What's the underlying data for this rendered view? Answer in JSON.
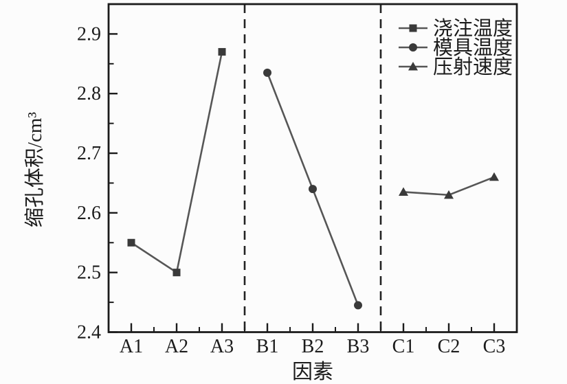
{
  "chart_data": {
    "type": "line",
    "title": "",
    "xlabel": "因素",
    "ylabel": "缩孔体积/cm³",
    "categories": [
      "A1",
      "A2",
      "A3",
      "B1",
      "B2",
      "B3",
      "C1",
      "C2",
      "C3"
    ],
    "series": [
      {
        "name": "浇注温度",
        "marker": "square",
        "start_index": 0,
        "x": [
          "A1",
          "A2",
          "A3"
        ],
        "values": [
          2.55,
          2.5,
          2.87
        ]
      },
      {
        "name": "模具温度",
        "marker": "circle",
        "start_index": 3,
        "x": [
          "B1",
          "B2",
          "B3"
        ],
        "values": [
          2.835,
          2.64,
          2.445
        ]
      },
      {
        "name": "压射速度",
        "marker": "triangle",
        "start_index": 6,
        "x": [
          "C1",
          "C2",
          "C3"
        ],
        "values": [
          2.635,
          2.63,
          2.66
        ]
      }
    ],
    "ylim": [
      2.4,
      2.95
    ],
    "yticks": [
      2.4,
      2.5,
      2.6,
      2.7,
      2.8,
      2.9
    ],
    "y_minor_step": 0.05,
    "group_separator_indices": [
      3,
      6
    ],
    "separator_style": "dashed",
    "grid": false,
    "legend_position": "top-right",
    "tick_direction": "in",
    "colors": {
      "line": "#565656",
      "marker": "#3a3a3a",
      "axis": "#1b1b1b",
      "separator": "#222222",
      "background": "#fcfcfc"
    }
  }
}
